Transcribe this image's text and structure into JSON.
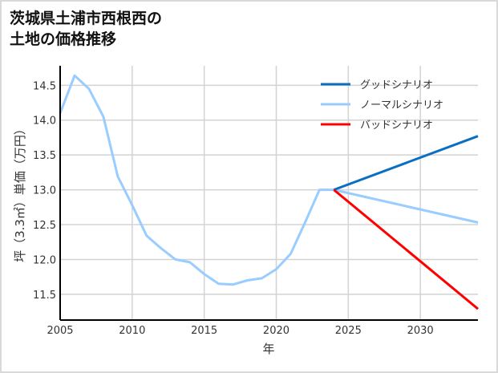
{
  "chart_data": {
    "type": "line",
    "title": "茨城県土浦市西根西の\n土地の価格推移",
    "title_lines": [
      "茨城県土浦市西根西の",
      "土地の価格推移"
    ],
    "xlabel": "年",
    "ylabel": "坪（3.3㎡）単価（万円）",
    "xlim": [
      2005,
      2034
    ],
    "ylim": [
      11.13,
      14.78
    ],
    "x_ticks": [
      "2005",
      "2010",
      "2015",
      "2020",
      "2025",
      "2030"
    ],
    "y_ticks": [
      "11.5",
      "12.0",
      "12.5",
      "13.0",
      "13.5",
      "14.0",
      "14.5"
    ],
    "grid": true,
    "legend_position": "upper right",
    "series": [
      {
        "name": "グッドシナリオ",
        "color": "#0a6fc2",
        "x": [
          2024,
          2034
        ],
        "values": [
          13.0,
          13.77
        ]
      },
      {
        "name": "ノーマルシナリオ",
        "color": "#99ccff",
        "x": [
          2005,
          2006,
          2007,
          2008,
          2009,
          2010,
          2011,
          2012,
          2013,
          2014,
          2015,
          2016,
          2017,
          2018,
          2019,
          2020,
          2021,
          2022,
          2023,
          2024,
          2034
        ],
        "values": [
          14.1,
          14.64,
          14.45,
          14.05,
          13.19,
          12.78,
          12.34,
          12.16,
          12.0,
          11.96,
          11.79,
          11.65,
          11.64,
          11.7,
          11.73,
          11.86,
          12.08,
          12.53,
          13.0,
          13.0,
          12.53
        ]
      },
      {
        "name": "バッドシナリオ",
        "color": "#ff0000",
        "x": [
          2024,
          2034
        ],
        "values": [
          13.0,
          11.29
        ]
      }
    ]
  }
}
